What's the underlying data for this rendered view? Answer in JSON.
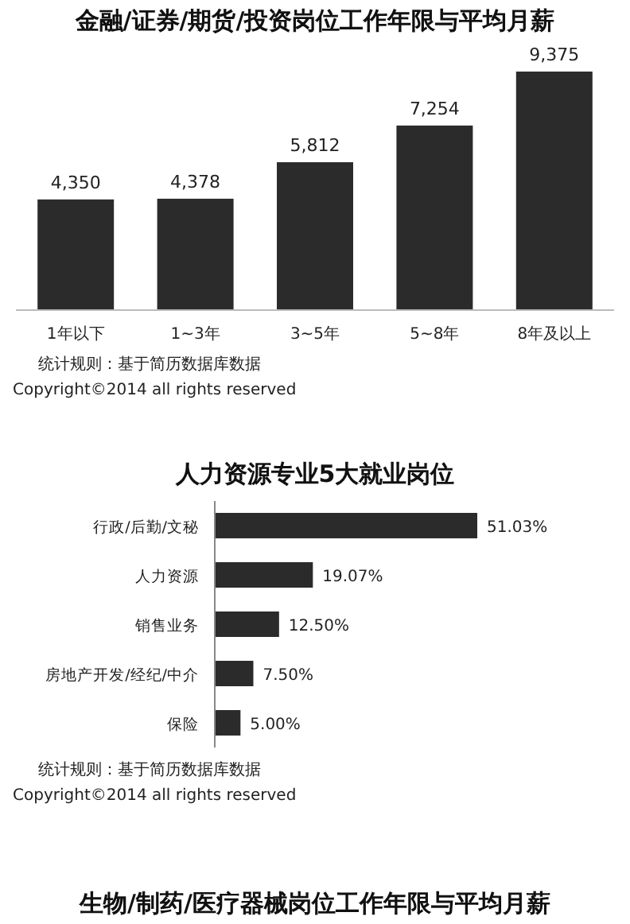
{
  "chart_data": [
    {
      "type": "bar",
      "title": "金融/证券/期货/投资岗位工作年限与平均月薪",
      "categories": [
        "1年以下",
        "1~3年",
        "3~5年",
        "5~8年",
        "8年及以上"
      ],
      "values": [
        4350,
        4378,
        5812,
        7254,
        9375
      ],
      "value_labels": [
        "4,350",
        "4,378",
        "5,812",
        "7,254",
        "9,375"
      ],
      "color": "#2b2b2b",
      "annotations": [
        "统计规则：基于简历数据库数据",
        "Copyright©2014 all rights reserved"
      ]
    },
    {
      "type": "bar",
      "orientation": "horizontal",
      "title": "人力资源专业5大就业岗位",
      "categories": [
        "行政/后勤/文秘",
        "人力资源",
        "销售业务",
        "房地产开发/经纪/中介",
        "保险"
      ],
      "values": [
        51.03,
        19.07,
        12.5,
        7.5,
        5.0
      ],
      "value_labels": [
        "51.03%",
        "19.07%",
        "12.50%",
        "7.50%",
        "5.00%"
      ],
      "color": "#2b2b2b",
      "annotations": [
        "统计规则：基于简历数据库数据",
        "Copyright©2014 all rights reserved"
      ]
    },
    {
      "type": "other",
      "title": "生物/制药/医疗器械岗位工作年限与平均月薪"
    }
  ]
}
